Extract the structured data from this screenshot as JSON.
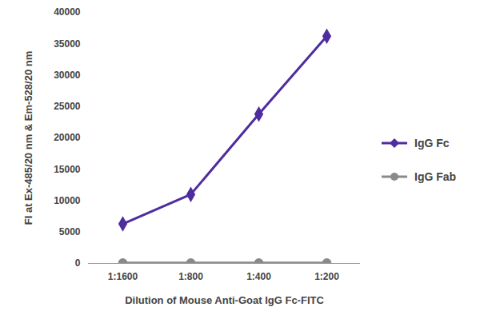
{
  "chart_data": {
    "type": "line",
    "x_label": "Dilution of Mouse Anti-Goat IgG Fc-FITC",
    "y_label": "FI at Ex-485/20 nm & Em-528/20 nm",
    "categories": [
      "1:1600",
      "1:800",
      "1:400",
      "1:200"
    ],
    "series": [
      {
        "name": "IgG Fc",
        "color": "#4f2d9e",
        "marker": "diamond",
        "values": [
          6300,
          11000,
          23800,
          36200
        ]
      },
      {
        "name": "IgG Fab",
        "color": "#8a8a8a",
        "marker": "circle",
        "values": [
          100,
          100,
          100,
          100
        ]
      }
    ],
    "ylim": [
      0,
      40000
    ],
    "yticks": [
      0,
      5000,
      10000,
      15000,
      20000,
      25000,
      30000,
      35000,
      40000
    ],
    "grid": false,
    "legend": "right"
  }
}
